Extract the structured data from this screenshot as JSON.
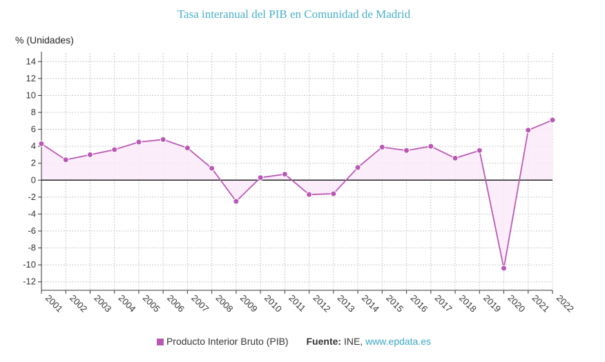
{
  "chart_data": {
    "type": "line",
    "title": "Tasa interanual del PIB en Comunidad de Madrid",
    "ylabel": "% (Unidades)",
    "xlabel": "",
    "ylim": [
      -13,
      15
    ],
    "yticks": [
      14,
      12,
      10,
      8,
      6,
      4,
      2,
      0,
      -2,
      -4,
      -6,
      -8,
      -10,
      -12
    ],
    "grid": true,
    "categories": [
      "2001",
      "2002",
      "2003",
      "2004",
      "2005",
      "2006",
      "2007",
      "2008",
      "2009",
      "2010",
      "2011",
      "2012",
      "2013",
      "2014",
      "2015",
      "2016",
      "2017",
      "2018",
      "2019",
      "2020",
      "2021",
      "2022"
    ],
    "series": [
      {
        "name": "Producto Interior Bruto (PIB)",
        "color": "#b958b4",
        "values": [
          4.3,
          2.4,
          3.0,
          3.6,
          4.5,
          4.8,
          3.8,
          1.4,
          -2.5,
          0.3,
          0.7,
          -1.7,
          -1.6,
          1.5,
          3.9,
          3.5,
          4.0,
          2.6,
          3.5,
          -10.4,
          5.9,
          7.1
        ]
      }
    ],
    "legend": {
      "series_label": "Producto Interior Bruto (PIB)",
      "source_label": "Fuente:",
      "source_text": "INE,",
      "source_link": "www.epdata.es"
    }
  }
}
